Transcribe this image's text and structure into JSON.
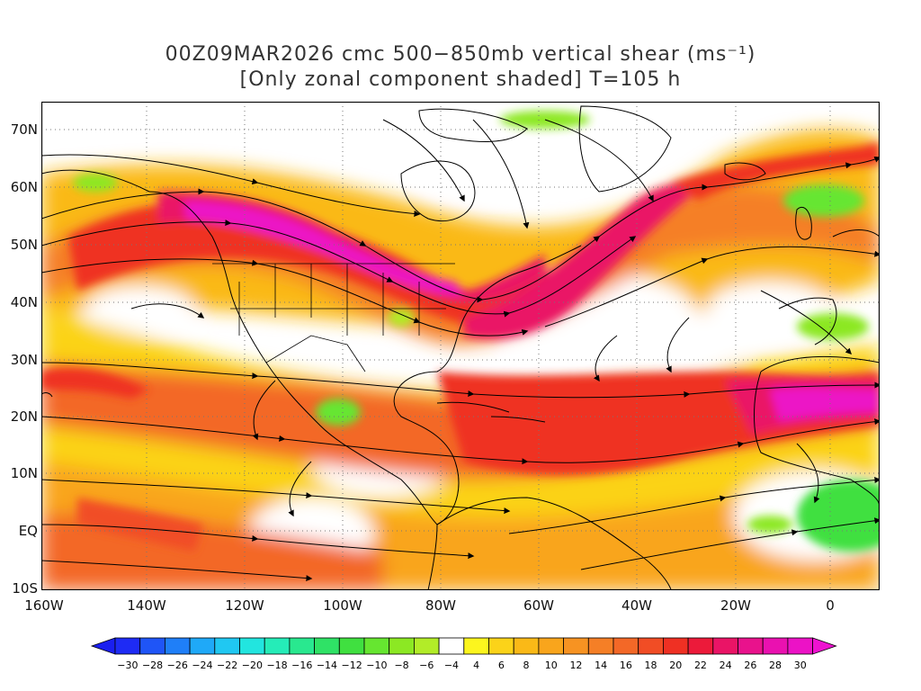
{
  "title": {
    "line1": "00Z09MAR2026 cmc 500−850mb vertical shear (ms⁻¹)",
    "line2": "[Only zonal component shaded] T=105 h"
  },
  "map": {
    "lat_labels": [
      "70N",
      "60N",
      "50N",
      "40N",
      "30N",
      "20N",
      "10N",
      "EQ",
      "10S"
    ],
    "lon_labels": [
      "160W",
      "140W",
      "120W",
      "100W",
      "80W",
      "60W",
      "40W",
      "20W",
      "0"
    ],
    "lat_values": [
      70,
      60,
      50,
      40,
      30,
      20,
      10,
      0,
      -10
    ],
    "lon_values": [
      -160,
      -140,
      -120,
      -100,
      -80,
      -60,
      -40,
      -20,
      0
    ],
    "lon_range": [
      -160,
      10
    ],
    "lat_range": [
      -10,
      75
    ],
    "features": [
      "zonal-shear-shading",
      "streamlines",
      "coastlines",
      "political-boundaries",
      "dotted-gridlines"
    ]
  },
  "colorbar": {
    "labels": [
      "−30",
      "−28",
      "−26",
      "−24",
      "−22",
      "−20",
      "−18",
      "−16",
      "−14",
      "−12",
      "−10",
      "−8",
      "−6",
      "−4",
      "4",
      "6",
      "8",
      "10",
      "12",
      "14",
      "16",
      "18",
      "20",
      "22",
      "24",
      "26",
      "28",
      "30"
    ],
    "colors": [
      "#1e2bf5",
      "#1f55f7",
      "#1f7ff8",
      "#1fa9f8",
      "#20c8f2",
      "#22e5df",
      "#25ecb8",
      "#29e88f",
      "#2fe266",
      "#40e040",
      "#66e630",
      "#8ce823",
      "#b2ec28",
      "#ffffff",
      "#fcf51e",
      "#fbd319",
      "#fab917",
      "#f9a51c",
      "#f79322",
      "#f57f26",
      "#f36827",
      "#f14d25",
      "#ef3023",
      "#ec1a3a",
      "#ea1466",
      "#e9128c",
      "#ea11b0",
      "#ec12c6"
    ]
  },
  "chart_data": {
    "type": "heatmap",
    "title": "00Z09MAR2026 cmc 500−850mb vertical shear (ms⁻¹)",
    "subtitle": "[Only zonal component shaded] T=105 h",
    "x_ticks": [
      "160W",
      "140W",
      "120W",
      "100W",
      "80W",
      "60W",
      "40W",
      "20W",
      "0"
    ],
    "y_ticks": [
      "70N",
      "60N",
      "50N",
      "40N",
      "30N",
      "20N",
      "10N",
      "EQ",
      "10S"
    ],
    "xlim": [
      -160,
      10
    ],
    "ylim": [
      -10,
      75
    ],
    "color_levels": [
      -30,
      -28,
      -26,
      -24,
      -22,
      -20,
      -18,
      -16,
      -14,
      -12,
      -10,
      -8,
      -6,
      -4,
      4,
      6,
      8,
      10,
      12,
      14,
      16,
      18,
      20,
      22,
      24,
      26,
      28,
      30
    ],
    "jets": [
      {
        "from": [
          -160,
          45
        ],
        "to": [
          -75,
          38
        ],
        "max": 28
      },
      {
        "from": [
          -75,
          38
        ],
        "to": [
          -15,
          60
        ],
        "max": 26
      },
      {
        "from": [
          -160,
          28
        ],
        "to": [
          10,
          22
        ],
        "max": 26
      }
    ]
  }
}
